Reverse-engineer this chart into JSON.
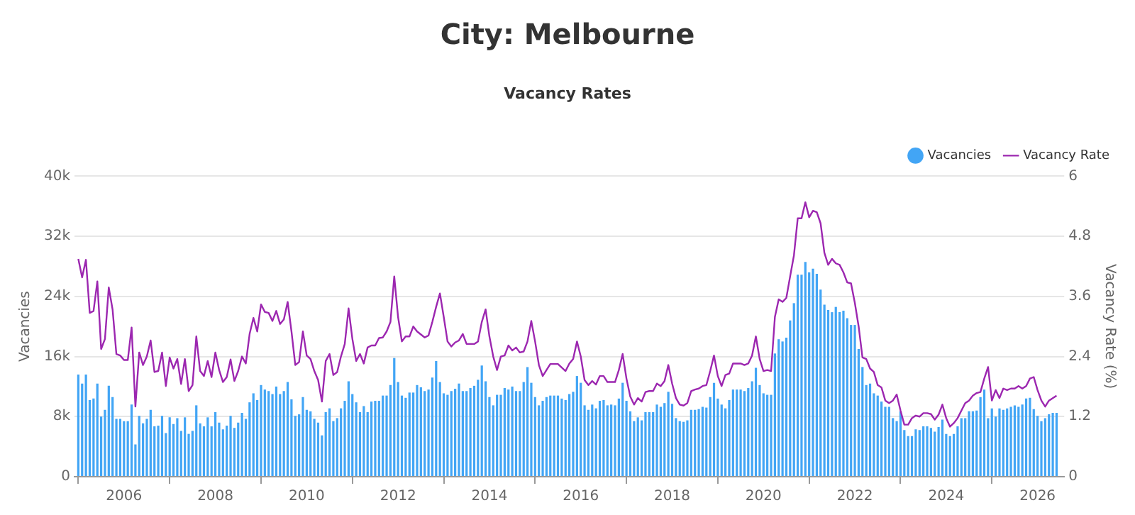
{
  "chart_data": {
    "type": "bar",
    "title": "City: Melbourne",
    "subtitle": "Vacancy Rates",
    "ylabel": "Vacancies",
    "y2label": "Vacancy Rate (%)",
    "x": [
      "2005-01",
      "2005-02",
      "2005-03",
      "2005-04",
      "2005-05",
      "2005-06",
      "2005-07",
      "2005-08",
      "2005-09",
      "2005-10",
      "2005-11",
      "2005-12",
      "2006-01",
      "2006-02",
      "2006-03",
      "2006-04",
      "2006-05",
      "2006-06",
      "2006-07",
      "2006-08",
      "2006-09",
      "2006-10",
      "2006-11",
      "2006-12",
      "2007-01",
      "2007-02",
      "2007-03",
      "2007-04",
      "2007-05",
      "2007-06",
      "2007-07",
      "2007-08",
      "2007-09",
      "2007-10",
      "2007-11",
      "2007-12",
      "2008-01",
      "2008-02",
      "2008-03",
      "2008-04",
      "2008-05",
      "2008-06",
      "2008-07",
      "2008-08",
      "2008-09",
      "2008-10",
      "2008-11",
      "2008-12",
      "2009-01",
      "2009-02",
      "2009-03",
      "2009-04",
      "2009-05",
      "2009-06",
      "2009-07",
      "2009-08",
      "2009-09",
      "2009-10",
      "2009-11",
      "2009-12",
      "2010-01",
      "2010-02",
      "2010-03",
      "2010-04",
      "2010-05",
      "2010-06",
      "2010-07",
      "2010-08",
      "2010-09",
      "2010-10",
      "2010-11",
      "2010-12",
      "2011-01",
      "2011-02",
      "2011-03",
      "2011-04",
      "2011-05",
      "2011-06",
      "2011-07",
      "2011-08",
      "2011-09",
      "2011-10",
      "2011-11",
      "2011-12",
      "2012-01",
      "2012-02",
      "2012-03",
      "2012-04",
      "2012-05",
      "2012-06",
      "2012-07",
      "2012-08",
      "2012-09",
      "2012-10",
      "2012-11",
      "2012-12",
      "2013-01",
      "2013-02",
      "2013-03",
      "2013-04",
      "2013-05",
      "2013-06",
      "2013-07",
      "2013-08",
      "2013-09",
      "2013-10",
      "2013-11",
      "2013-12",
      "2014-01",
      "2014-02",
      "2014-03",
      "2014-04",
      "2014-05",
      "2014-06",
      "2014-07",
      "2014-08",
      "2014-09",
      "2014-10",
      "2014-11",
      "2014-12",
      "2015-01",
      "2015-02",
      "2015-03",
      "2015-04",
      "2015-05",
      "2015-06",
      "2015-07",
      "2015-08",
      "2015-09",
      "2015-10",
      "2015-11",
      "2015-12",
      "2016-01",
      "2016-02",
      "2016-03",
      "2016-04",
      "2016-05",
      "2016-06",
      "2016-07",
      "2016-08",
      "2016-09",
      "2016-10",
      "2016-11",
      "2016-12",
      "2017-01",
      "2017-02",
      "2017-03",
      "2017-04",
      "2017-05",
      "2017-06",
      "2017-07",
      "2017-08",
      "2017-09",
      "2017-10",
      "2017-11",
      "2017-12",
      "2018-01",
      "2018-02",
      "2018-03",
      "2018-04",
      "2018-05",
      "2018-06",
      "2018-07",
      "2018-08",
      "2018-09",
      "2018-10",
      "2018-11",
      "2018-12",
      "2019-01",
      "2019-02",
      "2019-03",
      "2019-04",
      "2019-05",
      "2019-06",
      "2019-07",
      "2019-08",
      "2019-09",
      "2019-10",
      "2019-11",
      "2019-12",
      "2020-01",
      "2020-02",
      "2020-03",
      "2020-04",
      "2020-05",
      "2020-06",
      "2020-07",
      "2020-08",
      "2020-09",
      "2020-10",
      "2020-11",
      "2020-12",
      "2021-01",
      "2021-02",
      "2021-03",
      "2021-04",
      "2021-05",
      "2021-06",
      "2021-07",
      "2021-08",
      "2021-09",
      "2021-10",
      "2021-11",
      "2021-12",
      "2022-01",
      "2022-02",
      "2022-03",
      "2022-04",
      "2022-05",
      "2022-06",
      "2022-07",
      "2022-08",
      "2022-09",
      "2022-10",
      "2022-11",
      "2022-12",
      "2023-01",
      "2023-02",
      "2023-03",
      "2023-04",
      "2023-05",
      "2023-06",
      "2023-07",
      "2023-08",
      "2023-09",
      "2023-10",
      "2023-11",
      "2023-12",
      "2024-01",
      "2024-02",
      "2024-03",
      "2024-04",
      "2024-05",
      "2024-06",
      "2024-07",
      "2024-08",
      "2024-09",
      "2024-10",
      "2024-11",
      "2024-12",
      "2025-01",
      "2025-02",
      "2025-03",
      "2025-04",
      "2025-05",
      "2025-06",
      "2025-07",
      "2025-08",
      "2025-09",
      "2025-10",
      "2025-11",
      "2025-12",
      "2026-01",
      "2026-02",
      "2026-03",
      "2026-04",
      "2026-05",
      "2026-06"
    ],
    "series": [
      {
        "name": "Vacancies",
        "color": "#42a5f5",
        "values": [
          13600,
          12400,
          13600,
          10200,
          10400,
          12400,
          8000,
          8900,
          12100,
          10600,
          7700,
          7700,
          7400,
          7400,
          9600,
          4300,
          8100,
          7100,
          7700,
          8900,
          6700,
          6800,
          8100,
          5800,
          7900,
          7000,
          7800,
          6100,
          7900,
          5700,
          6100,
          9500,
          7100,
          6700,
          7900,
          6700,
          8600,
          7200,
          6300,
          6800,
          8100,
          6500,
          7200,
          8500,
          7700,
          9900,
          11100,
          10200,
          12200,
          11600,
          11400,
          11000,
          12000,
          11000,
          11400,
          12600,
          10300,
          8100,
          8300,
          10600,
          8900,
          8700,
          7700,
          7200,
          5500,
          8600,
          9100,
          7400,
          7800,
          9100,
          10100,
          12700,
          11000,
          9900,
          8600,
          9400,
          8600,
          10000,
          10100,
          10100,
          10800,
          10800,
          12200,
          15800,
          12600,
          10800,
          10500,
          11200,
          11200,
          12200,
          11900,
          11400,
          11600,
          13200,
          15400,
          12600,
          11100,
          10900,
          11400,
          11700,
          12400,
          11400,
          11400,
          11800,
          12100,
          12900,
          14800,
          12700,
          10600,
          9500,
          10900,
          10900,
          11800,
          11600,
          12000,
          11400,
          11400,
          12600,
          14600,
          12500,
          10600,
          9500,
          10100,
          10600,
          10800,
          10800,
          10800,
          10400,
          10200,
          11000,
          11300,
          13400,
          12500,
          9500,
          8900,
          9600,
          9100,
          10100,
          10200,
          9500,
          9600,
          9500,
          10400,
          12500,
          10100,
          8700,
          7400,
          7900,
          7500,
          8600,
          8600,
          8600,
          9600,
          9300,
          9800,
          11300,
          9700,
          7800,
          7400,
          7300,
          7500,
          8900,
          8900,
          9000,
          9300,
          9200,
          10600,
          12500,
          10400,
          9600,
          9100,
          10200,
          11600,
          11600,
          11600,
          11400,
          11800,
          12700,
          14500,
          12200,
          11100,
          10900,
          10900,
          16400,
          18300,
          18000,
          18500,
          20800,
          23100,
          26900,
          26900,
          28600,
          27200,
          27700,
          27000,
          24900,
          22900,
          22200,
          21900,
          22600,
          21900,
          22100,
          21100,
          20200,
          20200,
          17000,
          14600,
          12200,
          12400,
          11100,
          10800,
          10000,
          9300,
          9300,
          7800,
          7400,
          8700,
          6200,
          5400,
          5400,
          6300,
          6200,
          6700,
          6700,
          6500,
          6000,
          6600,
          7600,
          5700,
          5400,
          5700,
          6700,
          7800,
          7800,
          8700,
          8700,
          8800,
          10600,
          11600,
          7800,
          9100,
          8000,
          9100,
          8900,
          9100,
          9300,
          9500,
          9300,
          9600,
          10400,
          10500,
          9000,
          8100,
          7400,
          7800,
          8300,
          8500,
          8500
        ]
      },
      {
        "name": "Vacancy Rate",
        "type": "line",
        "axis": "y2",
        "color": "#9c27b0",
        "values": [
          4.35,
          3.98,
          4.33,
          3.27,
          3.31,
          3.9,
          2.55,
          2.75,
          3.78,
          3.34,
          2.45,
          2.42,
          2.33,
          2.33,
          2.98,
          1.4,
          2.48,
          2.23,
          2.4,
          2.72,
          2.09,
          2.11,
          2.48,
          1.81,
          2.38,
          2.16,
          2.35,
          1.85,
          2.35,
          1.71,
          1.83,
          2.8,
          2.11,
          2.01,
          2.31,
          1.99,
          2.48,
          2.13,
          1.89,
          1.99,
          2.34,
          1.91,
          2.11,
          2.4,
          2.26,
          2.85,
          3.17,
          2.9,
          3.44,
          3.29,
          3.27,
          3.11,
          3.31,
          3.05,
          3.14,
          3.49,
          2.9,
          2.23,
          2.29,
          2.9,
          2.42,
          2.35,
          2.11,
          1.93,
          1.5,
          2.31,
          2.45,
          2.03,
          2.09,
          2.4,
          2.65,
          3.36,
          2.75,
          2.31,
          2.45,
          2.26,
          2.58,
          2.62,
          2.62,
          2.77,
          2.78,
          2.9,
          3.09,
          4.0,
          3.19,
          2.7,
          2.8,
          2.8,
          3.0,
          2.9,
          2.84,
          2.78,
          2.82,
          3.09,
          3.39,
          3.66,
          3.19,
          2.7,
          2.6,
          2.68,
          2.72,
          2.85,
          2.65,
          2.65,
          2.65,
          2.7,
          3.09,
          3.34,
          2.8,
          2.4,
          2.13,
          2.4,
          2.42,
          2.62,
          2.52,
          2.58,
          2.48,
          2.5,
          2.7,
          3.11,
          2.7,
          2.23,
          2.01,
          2.13,
          2.25,
          2.25,
          2.25,
          2.18,
          2.11,
          2.26,
          2.35,
          2.7,
          2.4,
          1.93,
          1.83,
          1.91,
          1.84,
          2.01,
          2.01,
          1.89,
          1.89,
          1.89,
          2.13,
          2.45,
          1.96,
          1.6,
          1.44,
          1.57,
          1.5,
          1.69,
          1.71,
          1.71,
          1.86,
          1.81,
          1.91,
          2.23,
          1.86,
          1.57,
          1.44,
          1.42,
          1.47,
          1.71,
          1.74,
          1.76,
          1.81,
          1.83,
          2.11,
          2.42,
          2.01,
          1.81,
          2.03,
          2.06,
          2.26,
          2.26,
          2.26,
          2.23,
          2.26,
          2.42,
          2.8,
          2.35,
          2.11,
          2.13,
          2.11,
          3.19,
          3.54,
          3.49,
          3.57,
          4.0,
          4.42,
          5.16,
          5.16,
          5.48,
          5.18,
          5.31,
          5.28,
          5.06,
          4.47,
          4.23,
          4.35,
          4.26,
          4.23,
          4.08,
          3.88,
          3.86,
          3.47,
          3.0,
          2.38,
          2.35,
          2.16,
          2.09,
          1.83,
          1.78,
          1.52,
          1.47,
          1.52,
          1.64,
          1.32,
          1.04,
          1.04,
          1.17,
          1.22,
          1.2,
          1.27,
          1.27,
          1.25,
          1.14,
          1.24,
          1.44,
          1.17,
          1.0,
          1.07,
          1.17,
          1.32,
          1.47,
          1.52,
          1.62,
          1.67,
          1.69,
          1.96,
          2.19,
          1.52,
          1.73,
          1.57,
          1.76,
          1.73,
          1.76,
          1.76,
          1.81,
          1.76,
          1.81,
          1.96,
          1.99,
          1.73,
          1.52,
          1.4,
          1.52,
          1.57,
          1.62
        ]
      }
    ],
    "xlim": [
      "2004-12",
      "2026-08"
    ],
    "xticks": [
      "2006",
      "2008",
      "2010",
      "2012",
      "2014",
      "2016",
      "2018",
      "2020",
      "2022",
      "2024",
      "2026"
    ],
    "ylim": [
      0,
      40000
    ],
    "yticks": [
      0,
      {
        "value": 8000,
        "label": "8k"
      },
      {
        "value": 16000,
        "label": "16k"
      },
      {
        "value": 24000,
        "label": "24k"
      },
      {
        "value": 32000,
        "label": "32k"
      },
      {
        "value": 40000,
        "label": "40k"
      }
    ],
    "y2lim": [
      0,
      6
    ],
    "y2ticks": [
      0,
      1.2,
      2.4,
      3.6,
      4.8,
      6
    ],
    "grid": "y",
    "legend": "top right",
    "marker": "none",
    "line_style": "solid"
  }
}
